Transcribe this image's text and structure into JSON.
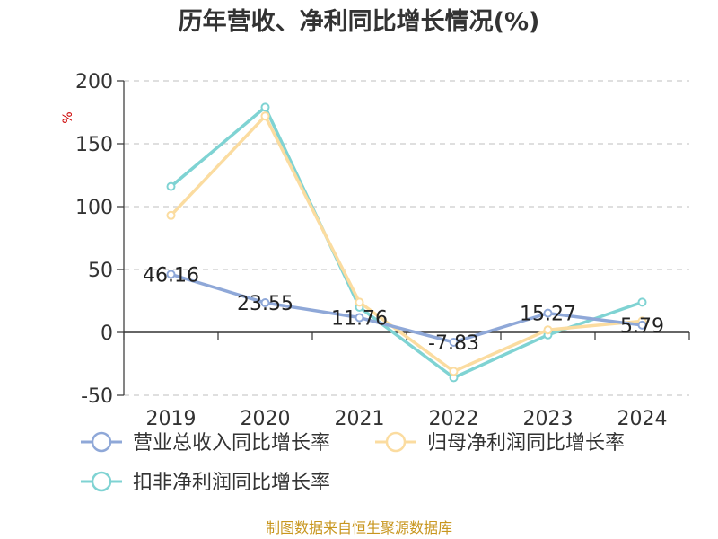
{
  "source_text": "制图数据来自恒生聚源数据库",
  "chart_data": {
    "type": "line",
    "title": "历年营收、净利同比增长情况(%)",
    "ylabel": "%",
    "categories": [
      "2019",
      "2020",
      "2021",
      "2022",
      "2023",
      "2024"
    ],
    "y_ticks": [
      "200",
      "150",
      "100",
      "50",
      "0",
      "-50"
    ],
    "ylim": [
      -50,
      200
    ],
    "grid": true,
    "legend_position": "bottom",
    "series": [
      {
        "name": "营业总收入同比增长率",
        "color": "#8fa8d8",
        "values": [
          46.16,
          23.55,
          11.76,
          -7.83,
          15.27,
          5.79
        ],
        "labels": [
          "46.16",
          "23.55",
          "11.76",
          "-7.83",
          "15.27",
          "5.79"
        ]
      },
      {
        "name": "归母净利润同比增长率",
        "color": "#fbdca0",
        "values": [
          93,
          172,
          24,
          -31,
          2,
          9
        ]
      },
      {
        "name": "扣非净利润同比增长率",
        "color": "#7fd3d3",
        "values": [
          116,
          179,
          20,
          -36,
          -2,
          24
        ]
      }
    ]
  }
}
